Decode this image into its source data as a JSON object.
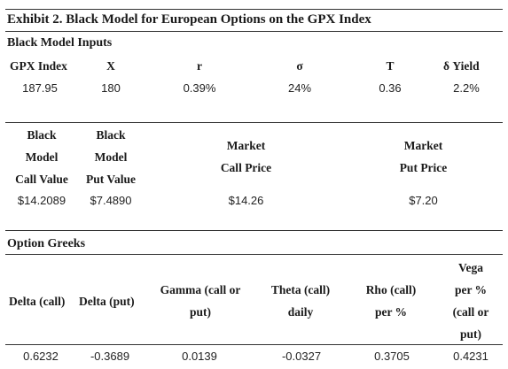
{
  "title": "Exhibit 2. Black Model for European Options on the GPX Index",
  "inputs": {
    "section": "Black Model Inputs",
    "headers": [
      "GPX Index",
      "X",
      "r",
      "σ",
      "T",
      "δ Yield"
    ],
    "values": [
      "187.95",
      "180",
      "0.39%",
      "24%",
      "0.36",
      "2.2%"
    ]
  },
  "outputs": {
    "call_value_header": [
      "Black",
      "Model",
      "Call Value"
    ],
    "put_value_header": [
      "Black",
      "Model",
      "Put Value"
    ],
    "market_call_header": [
      "Market",
      "Call Price"
    ],
    "market_put_header": [
      "Market",
      "Put Price"
    ],
    "values": [
      "$14.2089",
      "$7.4890",
      "$14.26",
      "$7.20"
    ]
  },
  "greeks": {
    "section": "Option Greeks",
    "delta_call": "Delta (call)",
    "delta_put": "Delta (put)",
    "gamma": [
      "Gamma (call or",
      "put)"
    ],
    "theta": [
      "Theta (call)",
      "daily"
    ],
    "rho": [
      "Rho (call)",
      "per %"
    ],
    "vega": [
      "Vega",
      "per %",
      "(call or",
      "put)"
    ],
    "values": [
      "0.6232",
      "-0.3689",
      "0.0139",
      "-0.0327",
      "0.3705",
      "0.4231"
    ]
  }
}
